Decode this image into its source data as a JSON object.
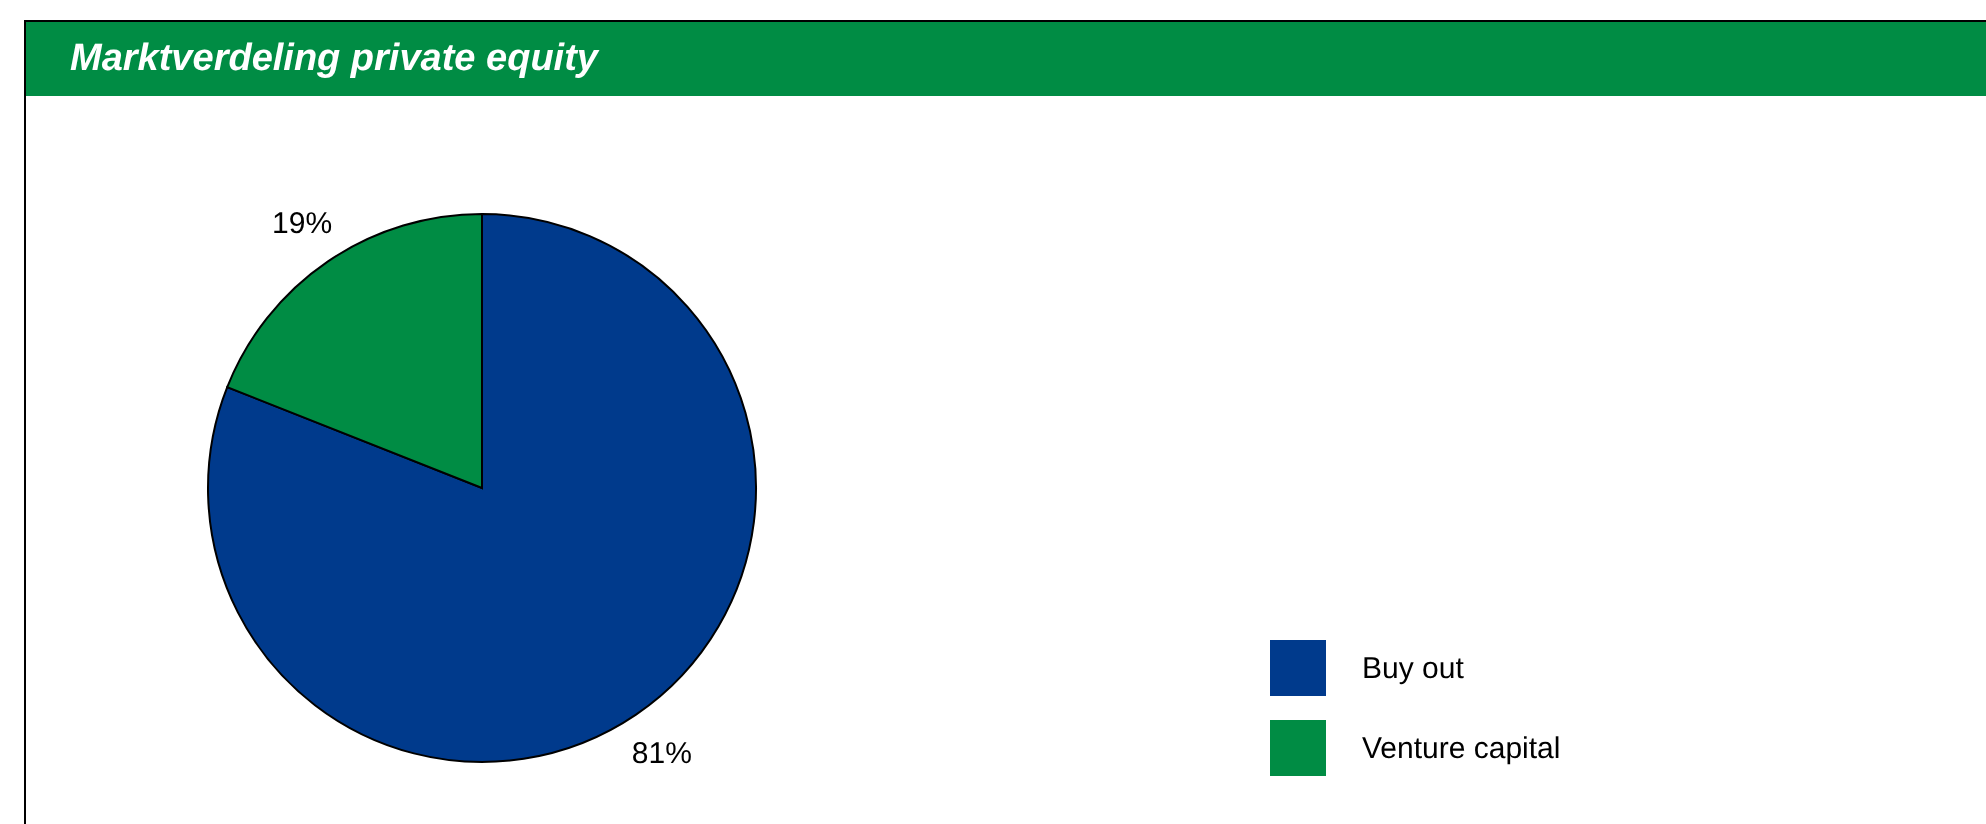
{
  "chart_data": {
    "type": "pie",
    "title": "Marktverdeling private equity",
    "categories": [
      "Buy out",
      "Venture capital"
    ],
    "values": [
      81,
      19
    ],
    "colors": [
      "#003a8c",
      "#008c44"
    ],
    "value_labels": [
      "81%",
      "19%"
    ],
    "legend": "bottom right"
  }
}
